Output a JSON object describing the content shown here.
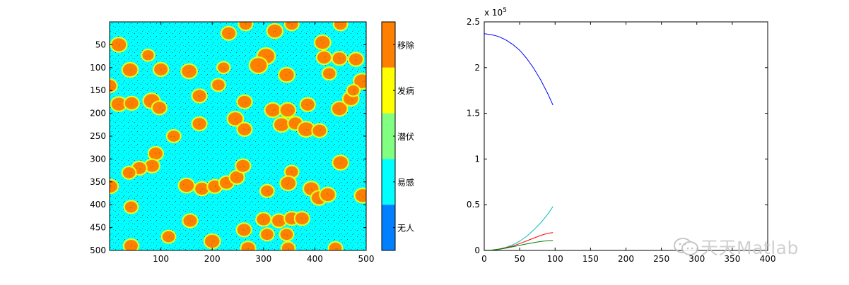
{
  "chart_data": [
    {
      "type": "heatmap",
      "title": "",
      "xlim": [
        0,
        500
      ],
      "ylim": [
        0,
        500
      ],
      "y_direction": "reversed",
      "x_ticks": [
        100,
        200,
        300,
        400,
        500
      ],
      "y_ticks": [
        50,
        100,
        150,
        200,
        250,
        300,
        350,
        400,
        450,
        500
      ],
      "background_state": "易感",
      "patch_state": "移除",
      "colorbar": {
        "labels": [
          "移除",
          "发病",
          "潜伏",
          "易感",
          "无人"
        ],
        "colors": [
          "#ff8000",
          "#ffff00",
          "#80ff80",
          "#00ffff",
          "#0080ff"
        ]
      },
      "clusters": [
        {
          "x": 18,
          "y": 50,
          "r": 14
        },
        {
          "x": 75,
          "y": 73,
          "r": 11
        },
        {
          "x": 40,
          "y": 105,
          "r": 14
        },
        {
          "x": 100,
          "y": 104,
          "r": 13
        },
        {
          "x": 155,
          "y": 108,
          "r": 14
        },
        {
          "x": 222,
          "y": 100,
          "r": 11
        },
        {
          "x": 232,
          "y": 25,
          "r": 13
        },
        {
          "x": 265,
          "y": 5,
          "r": 12
        },
        {
          "x": 322,
          "y": 20,
          "r": 14
        },
        {
          "x": 355,
          "y": 5,
          "r": 12
        },
        {
          "x": 305,
          "y": 75,
          "r": 16
        },
        {
          "x": 290,
          "y": 95,
          "r": 16
        },
        {
          "x": 345,
          "y": 116,
          "r": 14
        },
        {
          "x": 415,
          "y": 45,
          "r": 14
        },
        {
          "x": 450,
          "y": 5,
          "r": 12
        },
        {
          "x": 418,
          "y": 78,
          "r": 13
        },
        {
          "x": 448,
          "y": 80,
          "r": 13
        },
        {
          "x": 480,
          "y": 82,
          "r": 13
        },
        {
          "x": 428,
          "y": 113,
          "r": 12
        },
        {
          "x": 492,
          "y": 130,
          "r": 15
        },
        {
          "x": 0,
          "y": 140,
          "r": 13
        },
        {
          "x": 18,
          "y": 180,
          "r": 14
        },
        {
          "x": 43,
          "y": 178,
          "r": 13
        },
        {
          "x": 82,
          "y": 173,
          "r": 15
        },
        {
          "x": 97,
          "y": 188,
          "r": 13
        },
        {
          "x": 175,
          "y": 162,
          "r": 13
        },
        {
          "x": 212,
          "y": 138,
          "r": 12
        },
        {
          "x": 263,
          "y": 175,
          "r": 13
        },
        {
          "x": 245,
          "y": 212,
          "r": 14
        },
        {
          "x": 263,
          "y": 235,
          "r": 13
        },
        {
          "x": 175,
          "y": 223,
          "r": 13
        },
        {
          "x": 125,
          "y": 250,
          "r": 12
        },
        {
          "x": 318,
          "y": 193,
          "r": 14
        },
        {
          "x": 347,
          "y": 193,
          "r": 14
        },
        {
          "x": 335,
          "y": 225,
          "r": 14
        },
        {
          "x": 362,
          "y": 222,
          "r": 13
        },
        {
          "x": 383,
          "y": 235,
          "r": 15
        },
        {
          "x": 409,
          "y": 238,
          "r": 13
        },
        {
          "x": 386,
          "y": 181,
          "r": 13
        },
        {
          "x": 448,
          "y": 190,
          "r": 14
        },
        {
          "x": 470,
          "y": 168,
          "r": 14
        },
        {
          "x": 475,
          "y": 150,
          "r": 11
        },
        {
          "x": 90,
          "y": 288,
          "r": 13
        },
        {
          "x": 83,
          "y": 315,
          "r": 13
        },
        {
          "x": 58,
          "y": 320,
          "r": 13
        },
        {
          "x": 38,
          "y": 330,
          "r": 12
        },
        {
          "x": 2,
          "y": 360,
          "r": 13
        },
        {
          "x": 42,
          "y": 405,
          "r": 12
        },
        {
          "x": 150,
          "y": 358,
          "r": 14
        },
        {
          "x": 180,
          "y": 365,
          "r": 13
        },
        {
          "x": 205,
          "y": 360,
          "r": 13
        },
        {
          "x": 228,
          "y": 352,
          "r": 13
        },
        {
          "x": 248,
          "y": 340,
          "r": 13
        },
        {
          "x": 260,
          "y": 315,
          "r": 13
        },
        {
          "x": 307,
          "y": 370,
          "r": 12
        },
        {
          "x": 355,
          "y": 328,
          "r": 12
        },
        {
          "x": 348,
          "y": 353,
          "r": 14
        },
        {
          "x": 393,
          "y": 365,
          "r": 14
        },
        {
          "x": 408,
          "y": 385,
          "r": 14
        },
        {
          "x": 425,
          "y": 378,
          "r": 14
        },
        {
          "x": 450,
          "y": 308,
          "r": 14
        },
        {
          "x": 493,
          "y": 380,
          "r": 14
        },
        {
          "x": 157,
          "y": 435,
          "r": 13
        },
        {
          "x": 115,
          "y": 470,
          "r": 12
        },
        {
          "x": 262,
          "y": 455,
          "r": 13
        },
        {
          "x": 300,
          "y": 432,
          "r": 13
        },
        {
          "x": 330,
          "y": 435,
          "r": 13
        },
        {
          "x": 355,
          "y": 430,
          "r": 13
        },
        {
          "x": 375,
          "y": 430,
          "r": 13
        },
        {
          "x": 307,
          "y": 465,
          "r": 12
        },
        {
          "x": 345,
          "y": 465,
          "r": 12
        },
        {
          "x": 200,
          "y": 480,
          "r": 14
        },
        {
          "x": 42,
          "y": 490,
          "r": 13
        },
        {
          "x": 270,
          "y": 495,
          "r": 13
        },
        {
          "x": 348,
          "y": 495,
          "r": 12
        },
        {
          "x": 440,
          "y": 495,
          "r": 12
        }
      ]
    },
    {
      "type": "line",
      "title": "",
      "xlabel": "",
      "ylabel": "",
      "xlim": [
        0,
        400
      ],
      "ylim": [
        0,
        250000
      ],
      "x_ticks": [
        0,
        50,
        100,
        150,
        200,
        250,
        300,
        350,
        400
      ],
      "y_ticks": [
        0,
        0.5,
        1,
        1.5,
        2,
        2.5
      ],
      "y_exponent_label": "x 10",
      "y_exponent": "5",
      "x": [
        0,
        10,
        20,
        30,
        40,
        50,
        60,
        70,
        80,
        90,
        97
      ],
      "series": [
        {
          "name": "blue",
          "color": "#0000ff",
          "values": [
            237000,
            236000,
            234000,
            230500,
            225500,
            219000,
            210000,
            199000,
            186000,
            171000,
            159000
          ]
        },
        {
          "name": "cyan",
          "color": "#00bfbf",
          "values": [
            0,
            400,
            1500,
            3200,
            6000,
            10000,
            15500,
            22500,
            30500,
            40000,
            48000
          ]
        },
        {
          "name": "red",
          "color": "#ff0000",
          "values": [
            0,
            300,
            1200,
            2800,
            4800,
            7500,
            10500,
            13500,
            16500,
            18800,
            19500
          ]
        },
        {
          "name": "green",
          "color": "#008000",
          "values": [
            0,
            300,
            1100,
            2400,
            3900,
            5600,
            7200,
            8600,
            9800,
            10600,
            11000
          ]
        }
      ]
    }
  ],
  "watermark": {
    "text": "天天Matlab",
    "icon": "chat-bubbles-icon"
  }
}
